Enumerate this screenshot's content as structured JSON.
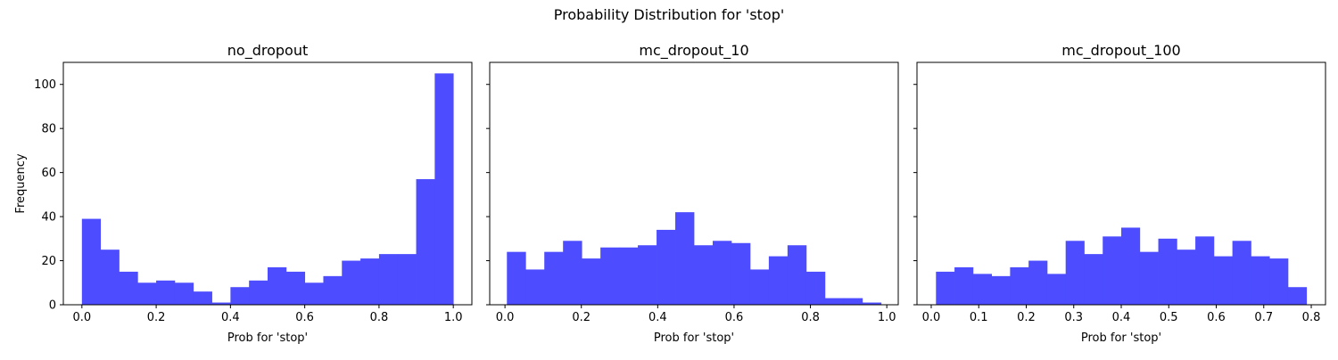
{
  "figure": {
    "suptitle": "Probability Distribution for 'stop'"
  },
  "colors": {
    "bar": "#4d4dff",
    "axis": "#000000",
    "background": "#ffffff"
  },
  "chart_data": [
    {
      "type": "bar",
      "subtype": "histogram",
      "title": "no_dropout",
      "xlabel": "Prob for 'stop'",
      "ylabel": "Frequency",
      "xlim": [
        -0.05,
        1.05
      ],
      "ylim": [
        0,
        110
      ],
      "xticks": [
        0.0,
        0.2,
        0.4,
        0.6,
        0.8,
        1.0
      ],
      "xtick_labels": [
        "0.0",
        "0.2",
        "0.4",
        "0.6",
        "0.8",
        "1.0"
      ],
      "yticks": [
        0,
        20,
        40,
        60,
        80,
        100
      ],
      "ytick_labels": [
        "0",
        "20",
        "40",
        "60",
        "80",
        "100"
      ],
      "bin_start": 0.0,
      "bin_end": 1.0,
      "counts": [
        39,
        25,
        15,
        10,
        11,
        10,
        6,
        1,
        8,
        11,
        17,
        15,
        10,
        13,
        20,
        21,
        23,
        23,
        57,
        105
      ]
    },
    {
      "type": "bar",
      "subtype": "histogram",
      "title": "mc_dropout_10",
      "xlabel": "Prob for 'stop'",
      "ylabel": "",
      "xlim": [
        -0.04,
        1.03
      ],
      "ylim": [
        0,
        110
      ],
      "xticks": [
        0.0,
        0.2,
        0.4,
        0.6,
        0.8,
        1.0
      ],
      "xtick_labels": [
        "0.0",
        "0.2",
        "0.4",
        "0.6",
        "0.8",
        "1.0"
      ],
      "yticks": [
        0,
        20,
        40,
        60,
        80,
        100
      ],
      "ytick_labels": [],
      "bin_start": 0.005,
      "bin_end": 0.985,
      "counts": [
        24,
        16,
        24,
        29,
        21,
        26,
        26,
        27,
        34,
        42,
        27,
        29,
        28,
        16,
        22,
        27,
        15,
        3,
        3,
        1
      ]
    },
    {
      "type": "bar",
      "subtype": "histogram",
      "title": "mc_dropout_100",
      "xlabel": "Prob for 'stop'",
      "ylabel": "",
      "xlim": [
        -0.03,
        0.83
      ],
      "ylim": [
        0,
        110
      ],
      "xticks": [
        0.0,
        0.1,
        0.2,
        0.3,
        0.4,
        0.5,
        0.6,
        0.7,
        0.8
      ],
      "xtick_labels": [
        "0.0",
        "0.1",
        "0.2",
        "0.3",
        "0.4",
        "0.5",
        "0.6",
        "0.7",
        "0.8"
      ],
      "yticks": [
        0,
        20,
        40,
        60,
        80,
        100
      ],
      "ytick_labels": [],
      "bin_start": 0.01,
      "bin_end": 0.79,
      "counts": [
        15,
        17,
        14,
        13,
        17,
        20,
        14,
        29,
        23,
        31,
        35,
        24,
        30,
        25,
        31,
        22,
        29,
        22,
        21,
        8
      ]
    }
  ]
}
